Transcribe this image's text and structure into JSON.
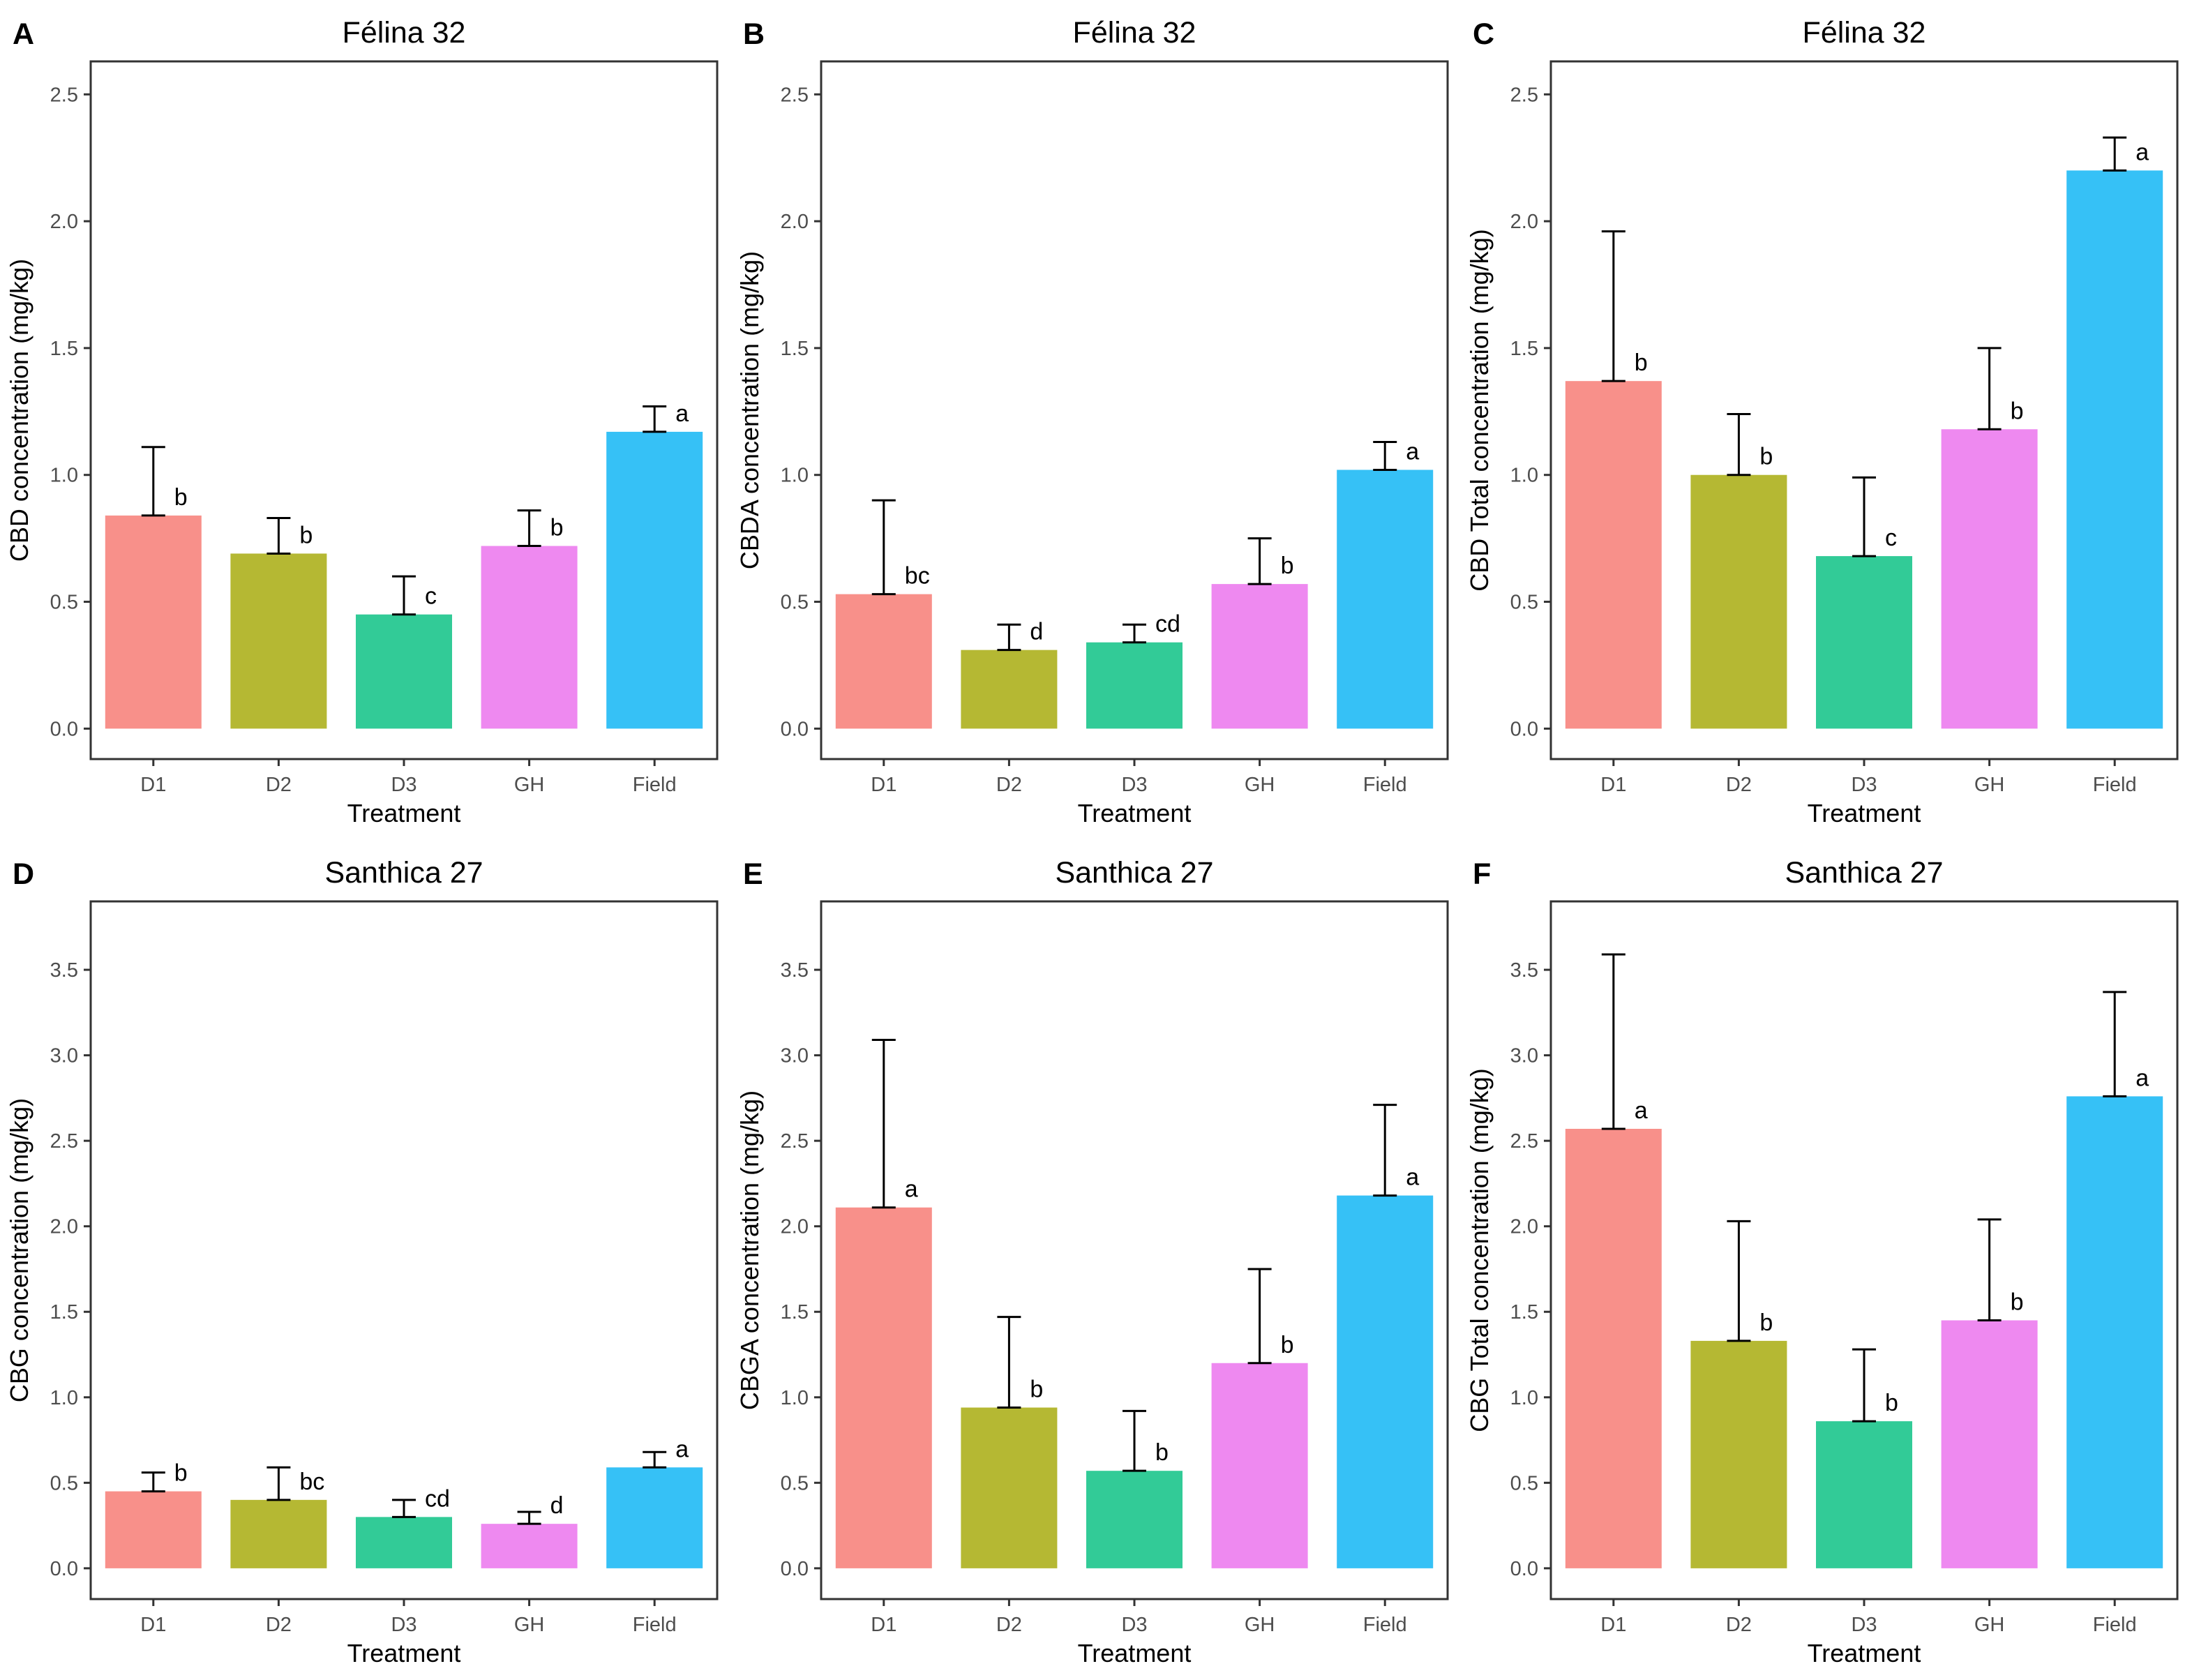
{
  "figure": {
    "xlabel": "Treatment",
    "categories": [
      "D1",
      "D2",
      "D3",
      "GH",
      "Field"
    ],
    "colors": [
      "#F8908A",
      "#B5B833",
      "#32CB97",
      "#EE89F0",
      "#36C1F6"
    ]
  },
  "chart_data": [
    {
      "type": "bar",
      "panel_letter": "A",
      "title": "Félina 32",
      "xlabel": "Treatment",
      "ylabel": "CBD concentration (mg/kg)",
      "categories": [
        "D1",
        "D2",
        "D3",
        "GH",
        "Field"
      ],
      "values": [
        0.84,
        0.69,
        0.45,
        0.72,
        1.17
      ],
      "errors": [
        0.27,
        0.14,
        0.15,
        0.14,
        0.1
      ],
      "letters": [
        "b",
        "b",
        "c",
        "b",
        "a"
      ],
      "ylim": [
        -0.12,
        2.63
      ],
      "yticks": [
        "0.0",
        "0.5",
        "1.0",
        "1.5",
        "2.0",
        "2.5"
      ],
      "grid": false
    },
    {
      "type": "bar",
      "panel_letter": "B",
      "title": "Félina 32",
      "xlabel": "Treatment",
      "ylabel": "CBDA concentration (mg/kg)",
      "categories": [
        "D1",
        "D2",
        "D3",
        "GH",
        "Field"
      ],
      "values": [
        0.53,
        0.31,
        0.34,
        0.57,
        1.02
      ],
      "errors": [
        0.37,
        0.1,
        0.07,
        0.18,
        0.11
      ],
      "letters": [
        "bc",
        "d",
        "cd",
        "b",
        "a"
      ],
      "ylim": [
        -0.12,
        2.63
      ],
      "yticks": [
        "0.0",
        "0.5",
        "1.0",
        "1.5",
        "2.0",
        "2.5"
      ],
      "grid": false
    },
    {
      "type": "bar",
      "panel_letter": "C",
      "title": "Félina 32",
      "xlabel": "Treatment",
      "ylabel": "CBD Total concentration (mg/kg)",
      "categories": [
        "D1",
        "D2",
        "D3",
        "GH",
        "Field"
      ],
      "values": [
        1.37,
        1.0,
        0.68,
        1.18,
        2.2
      ],
      "errors": [
        0.59,
        0.24,
        0.31,
        0.32,
        0.13
      ],
      "letters": [
        "b",
        "b",
        "c",
        "b",
        "a"
      ],
      "ylim": [
        -0.12,
        2.63
      ],
      "yticks": [
        "0.0",
        "0.5",
        "1.0",
        "1.5",
        "2.0",
        "2.5"
      ],
      "grid": false
    },
    {
      "type": "bar",
      "panel_letter": "D",
      "title": "Santhica 27",
      "xlabel": "Treatment",
      "ylabel": "CBG concentration (mg/kg)",
      "categories": [
        "D1",
        "D2",
        "D3",
        "GH",
        "Field"
      ],
      "values": [
        0.45,
        0.4,
        0.3,
        0.26,
        0.59
      ],
      "errors": [
        0.11,
        0.19,
        0.1,
        0.07,
        0.09
      ],
      "letters": [
        "b",
        "bc",
        "cd",
        "d",
        "a"
      ],
      "ylim": [
        -0.18,
        3.9
      ],
      "yticks": [
        "0.0",
        "0.5",
        "1.0",
        "1.5",
        "2.0",
        "2.5",
        "3.0",
        "3.5"
      ],
      "grid": false
    },
    {
      "type": "bar",
      "panel_letter": "E",
      "title": "Santhica 27",
      "xlabel": "Treatment",
      "ylabel": "CBGA concentration (mg/kg)",
      "categories": [
        "D1",
        "D2",
        "D3",
        "GH",
        "Field"
      ],
      "values": [
        2.11,
        0.94,
        0.57,
        1.2,
        2.18
      ],
      "errors": [
        0.98,
        0.53,
        0.35,
        0.55,
        0.53
      ],
      "letters": [
        "a",
        "b",
        "b",
        "b",
        "a"
      ],
      "ylim": [
        -0.18,
        3.9
      ],
      "yticks": [
        "0.0",
        "0.5",
        "1.0",
        "1.5",
        "2.0",
        "2.5",
        "3.0",
        "3.5"
      ],
      "grid": false
    },
    {
      "type": "bar",
      "panel_letter": "F",
      "title": "Santhica 27",
      "xlabel": "Treatment",
      "ylabel": "CBG Total concentration (mg/kg)",
      "categories": [
        "D1",
        "D2",
        "D3",
        "GH",
        "Field"
      ],
      "values": [
        2.57,
        1.33,
        0.86,
        1.45,
        2.76
      ],
      "errors": [
        1.02,
        0.7,
        0.42,
        0.59,
        0.61
      ],
      "letters": [
        "a",
        "b",
        "b",
        "b",
        "a"
      ],
      "ylim": [
        -0.18,
        3.9
      ],
      "yticks": [
        "0.0",
        "0.5",
        "1.0",
        "1.5",
        "2.0",
        "2.5",
        "3.0",
        "3.5"
      ],
      "grid": false
    }
  ]
}
